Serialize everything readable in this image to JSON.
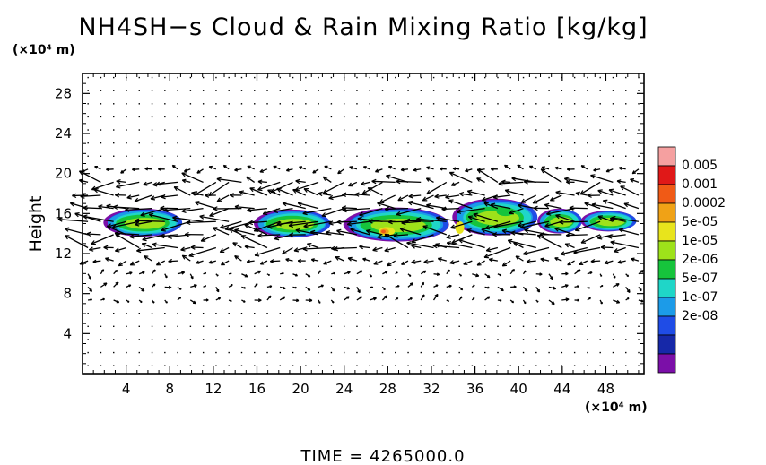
{
  "chart_data": {
    "type": "contour",
    "title": "NH4SH−s Cloud & Rain Mixing Ratio [kg/kg]",
    "y_unit": "(×10⁴ m)",
    "x_unit": "(×10⁴ m)",
    "ylabel": "Height",
    "footer": "TIME  =  4265000.0",
    "x_ticks": [
      "4",
      "8",
      "12",
      "16",
      "20",
      "24",
      "28",
      "32",
      "36",
      "40",
      "44",
      "48"
    ],
    "y_ticks": [
      "4",
      "8",
      "12",
      "16",
      "20",
      "24",
      "28"
    ],
    "xlim": [
      0,
      51.5
    ],
    "ylim": [
      0,
      30
    ],
    "colorbar_levels": [
      "0.005",
      "0.001",
      "0.0002",
      "5e-05",
      "1e-05",
      "2e-06",
      "5e-07",
      "1e-07",
      "2e-08"
    ],
    "colors": {
      "levels": [
        "#7b0fa8",
        "#1628a8",
        "#1f4ce6",
        "#1c9be8",
        "#1fd6c8",
        "#16c43c",
        "#9ee21a",
        "#e8e41c",
        "#f0a216",
        "#f05a16",
        "#e01818",
        "#f5a0a0"
      ],
      "barbs": "#000000",
      "frame": "#000000"
    },
    "cloud_bands": [
      {
        "x_range": [
          2.0,
          9.2
        ],
        "y_range": [
          13.7,
          16.5
        ]
      },
      {
        "x_range": [
          15.8,
          22.8
        ],
        "y_range": [
          13.6,
          16.4
        ]
      },
      {
        "x_range": [
          24.0,
          33.7
        ],
        "y_range": [
          13.2,
          16.6
        ]
      },
      {
        "x_range": [
          34.0,
          41.8
        ],
        "y_range": [
          13.8,
          17.5
        ]
      },
      {
        "x_range": [
          41.8,
          45.8
        ],
        "y_range": [
          14.0,
          16.5
        ]
      },
      {
        "x_range": [
          45.8,
          50.8
        ],
        "y_range": [
          14.2,
          16.3
        ]
      }
    ]
  }
}
